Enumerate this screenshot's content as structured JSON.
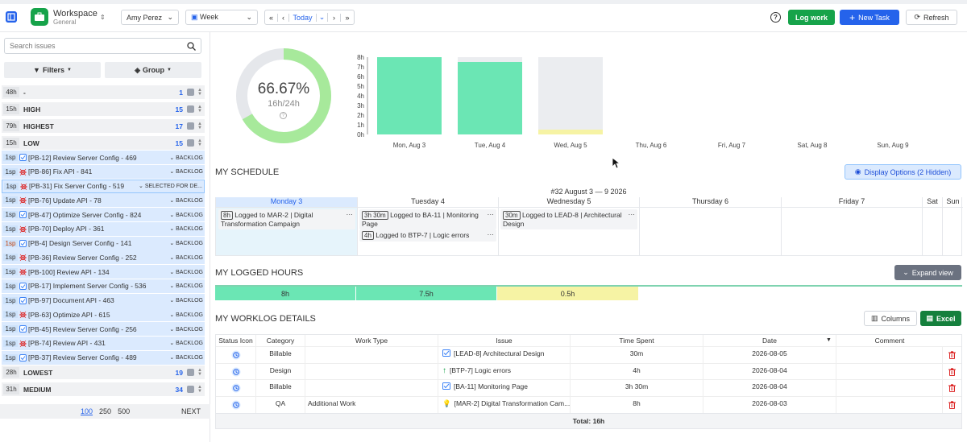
{
  "header": {
    "workspace_title": "Workspace",
    "workspace_sub": "General",
    "user": "Amy Perez",
    "view": "Week",
    "today": "Today",
    "log_work": "Log work",
    "new_task": "New Task",
    "refresh": "Refresh",
    "help": "?"
  },
  "sidebar": {
    "search_placeholder": "Search issues",
    "filters": "Filters",
    "group": "Group",
    "groups": [
      {
        "hrs": "48h",
        "name": "-",
        "count": "1"
      },
      {
        "hrs": "15h",
        "name": "HIGH",
        "count": "15"
      },
      {
        "hrs": "79h",
        "name": "HIGHEST",
        "count": "17"
      },
      {
        "hrs": "15h",
        "name": "LOW",
        "count": "15"
      }
    ],
    "issues": [
      {
        "sp": "1sp",
        "title": "[PB-12] Review Server Config - 469",
        "status": "BACKLOG",
        "type": "task"
      },
      {
        "sp": "1sp",
        "title": "[PB-86] Fix API - 841",
        "status": "BACKLOG",
        "type": "bug"
      },
      {
        "sp": "1sp",
        "title": "[PB-31] Fix Server Config - 519",
        "status": "SELECTED FOR DE...",
        "type": "bug"
      },
      {
        "sp": "1sp",
        "title": "[PB-76] Update API - 78",
        "status": "BACKLOG",
        "type": "bug"
      },
      {
        "sp": "1sp",
        "title": "[PB-47] Optimize Server Config - 824",
        "status": "BACKLOG",
        "type": "task"
      },
      {
        "sp": "1sp",
        "title": "[PB-70] Deploy API - 361",
        "status": "BACKLOG",
        "type": "bug"
      },
      {
        "sp": "1sp",
        "title": "[PB-4] Design Server Config - 141",
        "status": "BACKLOG",
        "type": "task"
      },
      {
        "sp": "1sp",
        "title": "[PB-36] Review Server Config - 252",
        "status": "BACKLOG",
        "type": "bug"
      },
      {
        "sp": "1sp",
        "title": "[PB-100] Review API - 134",
        "status": "BACKLOG",
        "type": "bug"
      },
      {
        "sp": "1sp",
        "title": "[PB-17] Implement Server Config - 536",
        "status": "BACKLOG",
        "type": "task"
      },
      {
        "sp": "1sp",
        "title": "[PB-97] Document API - 463",
        "status": "BACKLOG",
        "type": "task"
      },
      {
        "sp": "1sp",
        "title": "[PB-63] Optimize API - 615",
        "status": "BACKLOG",
        "type": "bug"
      },
      {
        "sp": "1sp",
        "title": "[PB-45] Review Server Config - 256",
        "status": "BACKLOG",
        "type": "task"
      },
      {
        "sp": "1sp",
        "title": "[PB-74] Review API - 431",
        "status": "BACKLOG",
        "type": "bug"
      },
      {
        "sp": "1sp",
        "title": "[PB-37] Review Server Config - 489",
        "status": "BACKLOG",
        "type": "task"
      }
    ],
    "groups_after": [
      {
        "hrs": "28h",
        "name": "LOWEST",
        "count": "19"
      },
      {
        "hrs": "31h",
        "name": "MEDIUM",
        "count": "34"
      }
    ],
    "pager": {
      "p100": "100",
      "p250": "250",
      "p500": "500",
      "next": "NEXT"
    }
  },
  "donut": {
    "percent_label": "66.67%",
    "sub_label": "16h/24h",
    "progress": 0.6667,
    "color": "#a7e99b",
    "track": "#e5e7eb"
  },
  "chart_data": {
    "type": "bar",
    "categories": [
      "Mon, Aug 3",
      "Tue, Aug 4",
      "Wed, Aug 5",
      "Thu, Aug 6",
      "Fri, Aug 7",
      "Sat, Aug 8",
      "Sun, Aug 9"
    ],
    "series": [
      {
        "values": [
          8,
          7.5,
          0.5,
          0,
          0,
          0,
          0
        ]
      }
    ],
    "capacity": [
      8,
      8,
      8,
      0,
      0,
      0,
      0
    ],
    "ylim": [
      0,
      8
    ],
    "yticks": [
      "0h",
      "1h",
      "2h",
      "3h",
      "4h",
      "5h",
      "6h",
      "7h",
      "8h"
    ],
    "bar_colors": [
      "#6be6b4",
      "#6be6b4",
      "#f6f3a4"
    ]
  },
  "schedule": {
    "title": "MY SCHEDULE",
    "display_options": "Display Options (2 Hidden)",
    "week_label": "#32 August 3 — 9 2026",
    "days": [
      "Monday 3",
      "Tuesday 4",
      "Wednesday 5",
      "Thursday 6",
      "Friday 7",
      "Sat",
      "Sun"
    ],
    "entries": [
      {
        "pill": "8h",
        "text": "Logged to MAR-2 | Digital Transformation Campaign"
      },
      {
        "pill": "3h 30m",
        "text": "Logged to BA-11 | Monitoring Page"
      },
      {
        "pill": "4h",
        "text": "Logged to BTP-7 | Logic errors"
      },
      {
        "pill": "30m",
        "text": "Logged to LEAD-8 | Architectural Design"
      }
    ]
  },
  "logged": {
    "title": "MY LOGGED HOURS",
    "expand": "Expand view",
    "cells": [
      "8h",
      "7.5h",
      "0.5h"
    ]
  },
  "details": {
    "title": "MY WORKLOG DETAILS",
    "columns": "Columns",
    "excel": "Excel",
    "headers": [
      "Status Icon",
      "Category",
      "Work Type",
      "Issue",
      "Time Spent",
      "Date",
      "Comment"
    ],
    "rows": [
      {
        "category": "Billable",
        "work_type": "",
        "issue": "[LEAD-8] Architectural Design",
        "time": "30m",
        "date": "2026-08-05",
        "comment": ""
      },
      {
        "category": "Design",
        "work_type": "",
        "issue": "[BTP-7] Logic errors",
        "time": "4h",
        "date": "2026-08-04",
        "comment": ""
      },
      {
        "category": "Billable",
        "work_type": "",
        "issue": "[BA-11] Monitoring Page",
        "time": "3h 30m",
        "date": "2026-08-04",
        "comment": ""
      },
      {
        "category": "QA",
        "work_type": "Additional Work",
        "issue": "[MAR-2] Digital Transformation Cam...",
        "time": "8h",
        "date": "2026-08-03",
        "comment": ""
      }
    ],
    "total": "Total: 16h"
  }
}
